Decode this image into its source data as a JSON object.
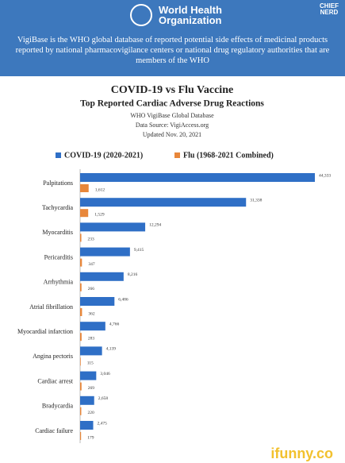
{
  "header": {
    "org_lines": [
      "World Health",
      "Organization"
    ],
    "badge_lines": [
      "CHIEF",
      "NERD"
    ],
    "description": "VigiBase is the WHO global database of reported potential side effects of medicinal products reported by national pharmacovigilance centers or national drug regulatory authorities that are members of the WHO"
  },
  "chart_data": {
    "type": "bar",
    "orientation": "horizontal",
    "title": "COVID-19 vs Flu Vaccine",
    "subtitle": "Top Reported Cardiac Adverse Drug Reactions",
    "notes": [
      "WHO VigiBase Global Database",
      "Data Source: VigiAccess.org",
      "Updated Nov. 20, 2021"
    ],
    "categories": [
      "Palpitations",
      "Tachycardia",
      "Myocarditis",
      "Pericarditis",
      "Arrhythmia",
      "Atrial fibrillation",
      "Myocardial infarction",
      "Angina pectoris",
      "Cardiac arrest",
      "Bradycardia",
      "Cardiac failure"
    ],
    "series": [
      {
        "name": "COVID-19 (2020-2021)",
        "color": "#2f6fc6",
        "values": [
          44333,
          31338,
          12294,
          9415,
          8216,
          6486,
          4766,
          4139,
          3046,
          2658,
          2475
        ],
        "value_labels": [
          "44,333",
          "31,338",
          "12,294",
          "9,415",
          "8,216",
          "6,486",
          "4,766",
          "4,139",
          "3,046",
          "2,658",
          "2,475"
        ]
      },
      {
        "name": "Flu (1968-2021 Combined)",
        "color": "#e8873a",
        "values": [
          1612,
          1529,
          233,
          347,
          266,
          362,
          283,
          115,
          269,
          220,
          179
        ],
        "value_labels": [
          "1,612",
          "1,529",
          "233",
          "347",
          "266",
          "362",
          "283",
          "115",
          "269",
          "220",
          "179"
        ]
      }
    ]
  },
  "watermark": "ifunny.co"
}
